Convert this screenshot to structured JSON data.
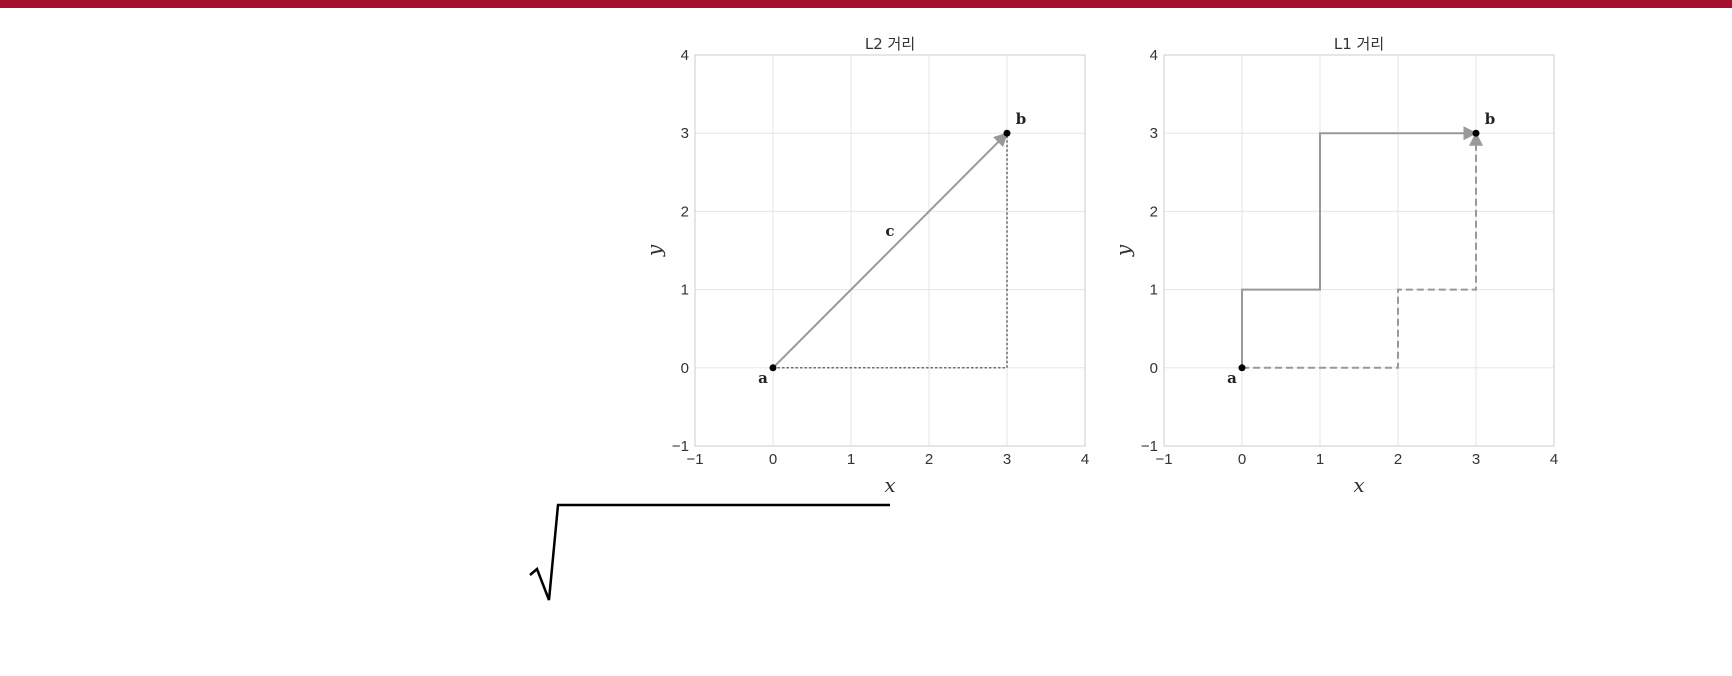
{
  "colors": {
    "accent_bar": "#a4102e",
    "grid": "#e6e6e6",
    "path": "#999999",
    "dotted": "#444444",
    "point": "#000000"
  },
  "chart_data": [
    {
      "type": "line",
      "title": "L2 거리",
      "xlabel": "x",
      "ylabel": "y",
      "xlim": [
        -1,
        4
      ],
      "ylim": [
        -1,
        4
      ],
      "xticks": [
        "−1",
        "0",
        "1",
        "2",
        "3",
        "4"
      ],
      "yticks": [
        "−1",
        "0",
        "1",
        "2",
        "3",
        "4"
      ],
      "grid": true,
      "points": [
        {
          "label": "a",
          "x": 0,
          "y": 0
        },
        {
          "label": "b",
          "x": 3,
          "y": 3
        }
      ],
      "series": [
        {
          "style": "solid-arrow",
          "x": [
            0,
            3
          ],
          "y": [
            0,
            3
          ]
        },
        {
          "style": "dotted",
          "x": [
            0,
            3,
            3
          ],
          "y": [
            0,
            0,
            3
          ]
        }
      ],
      "annotations": [
        {
          "text": "c",
          "x": 1.5,
          "y": 1.75
        }
      ]
    },
    {
      "type": "line",
      "title": "L1 거리",
      "xlabel": "x",
      "ylabel": "y",
      "xlim": [
        -1,
        4
      ],
      "ylim": [
        -1,
        4
      ],
      "xticks": [
        "−1",
        "0",
        "1",
        "2",
        "3",
        "4"
      ],
      "yticks": [
        "−1",
        "0",
        "1",
        "2",
        "3",
        "4"
      ],
      "grid": true,
      "points": [
        {
          "label": "a",
          "x": 0,
          "y": 0
        },
        {
          "label": "b",
          "x": 3,
          "y": 3
        }
      ],
      "series": [
        {
          "style": "solid-arrow",
          "x": [
            0,
            0,
            1,
            1,
            3
          ],
          "y": [
            0,
            1,
            1,
            3,
            3
          ]
        },
        {
          "style": "dashed-arrow",
          "x": [
            0,
            2,
            2,
            3,
            3
          ],
          "y": [
            0,
            0,
            1,
            1,
            3
          ]
        }
      ],
      "annotations": []
    }
  ]
}
